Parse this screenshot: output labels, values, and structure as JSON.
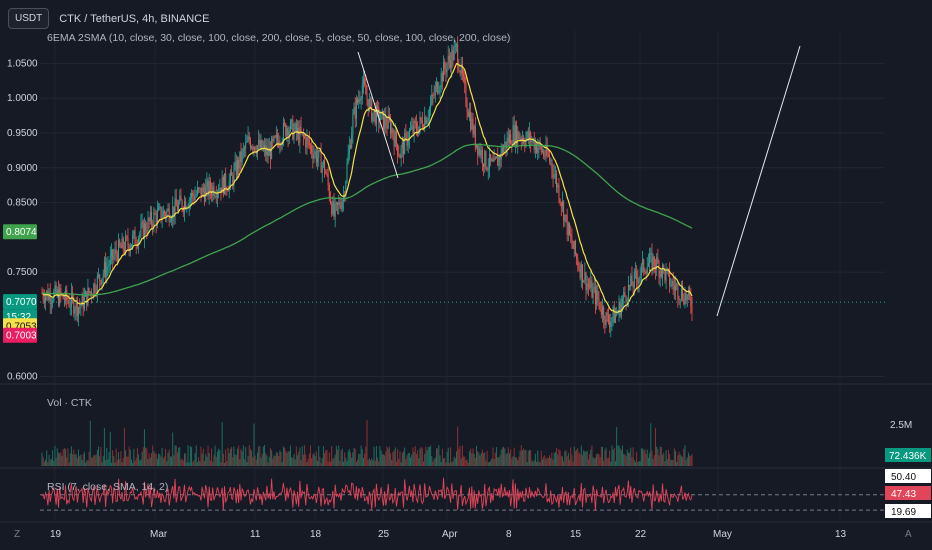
{
  "header": {
    "currency_button": "USDT",
    "symbol_line": "CTK / TetherUS, 4h, BINANCE"
  },
  "indicator_label": "6EMA 2SMA (10, close, 30, close, 100, close, 200, close, 5, close, 50, close, 100, close, 200, close)",
  "volume_label": "Vol · CTK",
  "rsi_label": "RSI (7, close, SMA, 14, 2)",
  "colors": {
    "background": "#161a25",
    "up": "#26a69a",
    "down": "#ef5350",
    "ema_fast": "#f5e24a",
    "ma_slow": "#3fa34d",
    "rsi": "#e0455a"
  },
  "chart_data": {
    "type": "candlestick",
    "price_axis": {
      "ticks": [
        "1.0500",
        "1.0000",
        "0.9500",
        "0.9000",
        "0.8500",
        "0.7500",
        "0.6000"
      ],
      "ylim": [
        0.595,
        1.098
      ]
    },
    "x_ticks": [
      "19",
      "Mar",
      "11",
      "18",
      "25",
      "Apr",
      "8",
      "15",
      "22",
      "May",
      "13"
    ],
    "price_series_keypoints": [
      [
        0,
        0.72
      ],
      [
        4,
        0.715
      ],
      [
        8,
        0.7
      ],
      [
        12,
        0.74
      ],
      [
        16,
        0.78
      ],
      [
        20,
        0.8
      ],
      [
        24,
        0.83
      ],
      [
        28,
        0.84
      ],
      [
        32,
        0.86
      ],
      [
        36,
        0.87
      ],
      [
        40,
        0.88
      ],
      [
        44,
        0.94
      ],
      [
        48,
        0.92
      ],
      [
        52,
        0.96
      ],
      [
        56,
        0.94
      ],
      [
        60,
        0.9
      ],
      [
        62,
        0.83
      ],
      [
        64,
        0.86
      ],
      [
        66,
        0.97
      ],
      [
        68,
        1.02
      ],
      [
        70,
        0.98
      ],
      [
        74,
        0.96
      ],
      [
        76,
        0.92
      ],
      [
        78,
        0.95
      ],
      [
        80,
        0.96
      ],
      [
        82,
        0.98
      ],
      [
        84,
        1.02
      ],
      [
        86,
        1.05
      ],
      [
        88,
        1.07
      ],
      [
        90,
        1.0
      ],
      [
        92,
        0.94
      ],
      [
        94,
        0.91
      ],
      [
        96,
        0.9
      ],
      [
        98,
        0.93
      ],
      [
        100,
        0.95
      ],
      [
        104,
        0.94
      ],
      [
        108,
        0.91
      ],
      [
        110,
        0.86
      ],
      [
        112,
        0.8
      ],
      [
        114,
        0.76
      ],
      [
        116,
        0.73
      ],
      [
        118,
        0.71
      ],
      [
        120,
        0.68
      ],
      [
        122,
        0.69
      ],
      [
        124,
        0.72
      ],
      [
        126,
        0.74
      ],
      [
        128,
        0.76
      ],
      [
        130,
        0.765
      ],
      [
        132,
        0.75
      ],
      [
        134,
        0.73
      ],
      [
        136,
        0.72
      ],
      [
        138,
        0.705
      ]
    ],
    "current_price": "0.7070",
    "countdown": "15:32",
    "ma_level": "0.8074",
    "yellow_tag": "0.7053",
    "red_tag": "0.7003",
    "volume": {
      "scale_label": "2.5M",
      "last_value": "72.436K"
    },
    "rsi": {
      "upper_band": "50.40",
      "value": "47.43",
      "lower_band": "19.69"
    }
  },
  "footer": {
    "left_icon": "Z",
    "right_icon": "A"
  }
}
